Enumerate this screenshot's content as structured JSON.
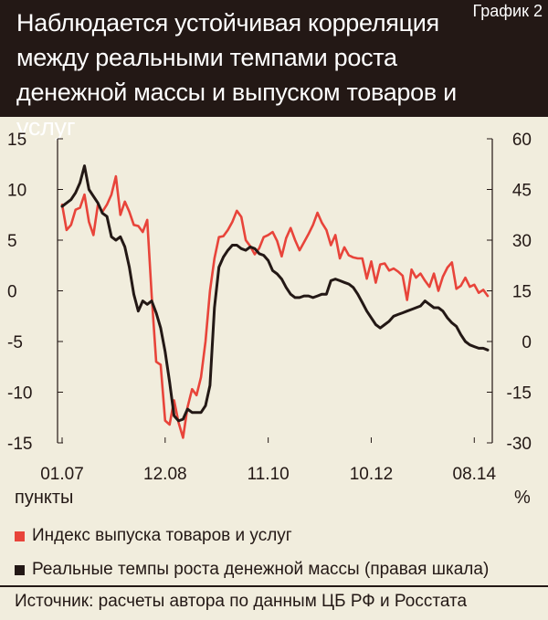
{
  "header": {
    "title": "Наблюдается устойчивая корреляция между реальными темпами роста денежной массы и выпуском товаров и услуг",
    "chart_label": "График 2"
  },
  "axes": {
    "left_unit": "пункты",
    "right_unit": "%"
  },
  "legend": [
    {
      "label": "Индекс выпуска товаров и услуг",
      "color": "#e8443a"
    },
    {
      "label": "Реальные темпы роста денежной массы (правая шкала)",
      "color": "#231815"
    }
  ],
  "source": "Источник: расчеты автора по данным ЦБ РФ и Росстата",
  "chart_data": {
    "type": "line",
    "title": "Наблюдается устойчивая корреляция между реальными темпами роста денежной массы и выпуском товаров и услуг",
    "x_tick_labels": [
      "01.07",
      "12.08",
      "11.10",
      "10.12",
      "08.14"
    ],
    "x_tick_index": [
      0,
      23,
      46,
      69,
      92
    ],
    "y_left": {
      "label": "пункты",
      "lim": [
        -15,
        15
      ],
      "ticks": [
        15,
        10,
        5,
        0,
        -5,
        -10,
        -15
      ]
    },
    "y_right": {
      "label": "%",
      "lim": [
        -30,
        60
      ],
      "ticks": [
        60,
        45,
        30,
        15,
        0,
        -15,
        -30
      ]
    },
    "series": [
      {
        "name": "Индекс выпуска товаров и услуг",
        "axis": "left",
        "color": "#e8443a",
        "values": [
          8.5,
          6.0,
          6.5,
          8.0,
          8.2,
          9.5,
          6.8,
          5.5,
          8.5,
          7.8,
          8.5,
          9.5,
          11.3,
          7.5,
          8.8,
          7.8,
          6.5,
          6.4,
          5.8,
          7.0,
          -0.5,
          -7.0,
          -7.3,
          -12.8,
          -13.2,
          -10.8,
          -13.0,
          -14.5,
          -11.5,
          -9.7,
          -10.3,
          -8.5,
          -5.0,
          0.0,
          3.2,
          5.3,
          5.4,
          6.0,
          6.8,
          7.9,
          7.3,
          5.0,
          4.4,
          3.6,
          4.2,
          5.3,
          5.5,
          5.8,
          4.9,
          3.4,
          5.2,
          6.2,
          5.0,
          4.0,
          4.8,
          5.6,
          6.5,
          7.7,
          6.7,
          6.0,
          4.5,
          5.5,
          3.2,
          4.3,
          3.5,
          3.3,
          3.2,
          3.2,
          1.2,
          2.9,
          0.8,
          2.6,
          2.7,
          2.0,
          2.2,
          1.9,
          1.5,
          -0.9,
          2.1,
          1.3,
          1.7,
          1.0,
          0.4,
          1.7,
          0.0,
          1.4,
          2.3,
          2.8,
          0.2,
          0.5,
          1.3,
          0.4,
          0.6,
          -0.2,
          0.1,
          -0.5
        ]
      },
      {
        "name": "Реальные темпы роста денежной массы (правая шкала)",
        "axis": "right",
        "color": "#231815",
        "values": [
          40.0,
          41.0,
          42.0,
          44.0,
          47.0,
          52.0,
          45.0,
          43.0,
          41.0,
          38.0,
          37.0,
          31.0,
          30.0,
          31.0,
          28.0,
          22.0,
          14.0,
          9.0,
          12.0,
          11.0,
          12.0,
          8.5,
          4.0,
          -3.0,
          -12.0,
          -22.0,
          -23.5,
          -23.0,
          -20.0,
          -21.0,
          -21.0,
          -21.0,
          -19.0,
          -13.0,
          10.0,
          22.0,
          25.0,
          27.0,
          28.5,
          28.5,
          27.5,
          27.0,
          28.0,
          27.5,
          26.0,
          25.5,
          24.0,
          21.0,
          20.0,
          18.5,
          16.0,
          14.0,
          13.0,
          13.0,
          13.5,
          13.5,
          13.0,
          13.5,
          14.0,
          14.0,
          18.0,
          18.5,
          18.0,
          17.5,
          17.0,
          16.0,
          14.0,
          11.5,
          9.0,
          7.0,
          5.0,
          4.0,
          5.0,
          6.0,
          7.5,
          8.0,
          8.5,
          9.0,
          9.5,
          10.0,
          10.5,
          12.0,
          11.0,
          10.0,
          10.0,
          9.0,
          7.0,
          5.5,
          4.5,
          2.0,
          0.0,
          -1.0,
          -1.5,
          -2.0,
          -2.0,
          -2.5
        ]
      }
    ]
  }
}
